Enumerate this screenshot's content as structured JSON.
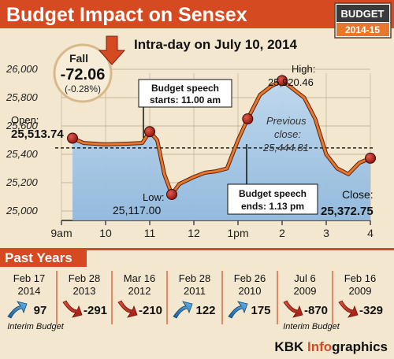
{
  "header": {
    "title": "Budget Impact on Sensex",
    "badge_top": "BUDGET",
    "badge_bottom": "2014-15",
    "subtitle": "Intra-day on July 10, 2014"
  },
  "fall": {
    "label": "Fall",
    "value": "-72.06",
    "pct": "(-0.28%)"
  },
  "annotations": {
    "open_label": "Open:",
    "open_value": "25,513.74",
    "speech_start_1": "Budget speech",
    "speech_start_2": "starts: 11.00 am",
    "low_label": "Low:",
    "low_value": "25,117.00",
    "high_label": "High:",
    "high_value": "25,920.46",
    "prev_label_1": "Previous",
    "prev_label_2": "close:",
    "prev_value": "25,444.81",
    "speech_end_1": "Budget speech",
    "speech_end_2": "ends: 1.13 pm",
    "close_label": "Close:",
    "close_value": "25,372.75"
  },
  "chart_data": {
    "type": "line",
    "title": "Intra-day on July 10, 2014",
    "xlabel": "",
    "ylabel": "",
    "x_ticks": [
      "9am",
      "10",
      "11",
      "12",
      "1pm",
      "2",
      "3",
      "4"
    ],
    "y_ticks": [
      "26,000",
      "25,800",
      "25,600",
      "25,400",
      "25,200",
      "25,000"
    ],
    "ylim": [
      25000,
      26000
    ],
    "grid": true,
    "reference_line": {
      "name": "Previous close",
      "value": 25444.81
    },
    "series": [
      {
        "values": [
          [
            9.25,
            25513.74
          ],
          [
            9.5,
            25480
          ],
          [
            10.0,
            25470
          ],
          [
            10.5,
            25475
          ],
          [
            10.83,
            25480
          ],
          [
            11.0,
            25560
          ],
          [
            11.17,
            25500
          ],
          [
            11.33,
            25260
          ],
          [
            11.5,
            25117
          ],
          [
            11.67,
            25190
          ],
          [
            12.0,
            25240
          ],
          [
            12.25,
            25270
          ],
          [
            12.5,
            25280
          ],
          [
            12.75,
            25300
          ],
          [
            13.0,
            25500
          ],
          [
            13.22,
            25650
          ],
          [
            13.5,
            25820
          ],
          [
            13.75,
            25880
          ],
          [
            14.0,
            25920.46
          ],
          [
            14.25,
            25860
          ],
          [
            14.5,
            25800
          ],
          [
            14.75,
            25650
          ],
          [
            15.0,
            25400
          ],
          [
            15.25,
            25300
          ],
          [
            15.5,
            25260
          ],
          [
            15.75,
            25340
          ],
          [
            16.0,
            25372.75
          ]
        ]
      }
    ],
    "key_points": [
      {
        "label": "Open",
        "x": 9.25,
        "y": 25513.74
      },
      {
        "label": "Budget speech starts",
        "x": 11.0,
        "y": 25560
      },
      {
        "label": "Low",
        "x": 11.5,
        "y": 25117.0
      },
      {
        "label": "Budget speech ends",
        "x": 13.22,
        "y": 25650
      },
      {
        "label": "High",
        "x": 14.0,
        "y": 25920.46
      },
      {
        "label": "Close",
        "x": 16.0,
        "y": 25372.75
      }
    ]
  },
  "past_years": {
    "title": "Past Years",
    "items": [
      {
        "date": "Feb 17",
        "year": "2014",
        "change": "97",
        "direction": "up",
        "note": "Interim Budget"
      },
      {
        "date": "Feb 28",
        "year": "2013",
        "change": "-291",
        "direction": "down",
        "note": ""
      },
      {
        "date": "Mar 16",
        "year": "2012",
        "change": "-210",
        "direction": "down",
        "note": ""
      },
      {
        "date": "Feb 28",
        "year": "2011",
        "change": "122",
        "direction": "up",
        "note": ""
      },
      {
        "date": "Feb 26",
        "year": "2010",
        "change": "175",
        "direction": "up",
        "note": ""
      },
      {
        "date": "Jul 6",
        "year": "2009",
        "change": "-870",
        "direction": "down",
        "note": "Interim Budget"
      },
      {
        "date": "Feb 16",
        "year": "2009",
        "change": "-329",
        "direction": "down",
        "note": ""
      }
    ]
  },
  "credit": {
    "part1": "KBK ",
    "part2": "Info",
    "part3": "graphics"
  },
  "colors": {
    "red": "#d64a22",
    "orange": "#e8762b",
    "beige": "#f3e7cf",
    "blue_area": "#a9c9e8",
    "title_brown": "#6b3a1f",
    "up_blue": "#2f86c8",
    "down_red": "#c72d1e"
  }
}
